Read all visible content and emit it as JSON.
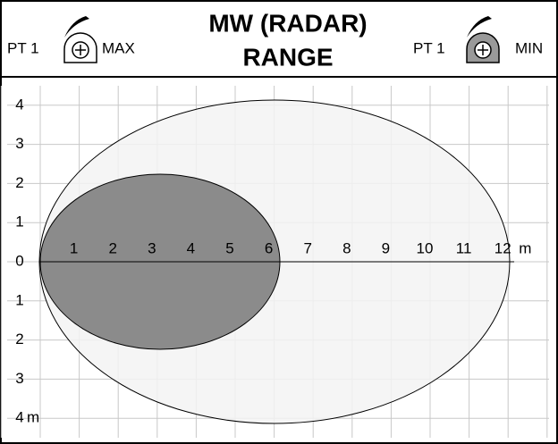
{
  "header": {
    "left": {
      "label": "PT 1",
      "mode": "MAX"
    },
    "title": [
      "MW (RADAR)",
      "RANGE"
    ],
    "right": {
      "label": "PT 1",
      "mode": "MIN"
    }
  },
  "diagram": {
    "x_labels": [
      "1",
      "2",
      "3",
      "4",
      "5",
      "6",
      "7",
      "8",
      "9",
      "10",
      "11",
      "12"
    ],
    "x_unit": "m",
    "y_labels": [
      "4",
      "3",
      "2",
      "1",
      "0",
      "1",
      "2",
      "3",
      "4"
    ],
    "y_unit": "m"
  }
}
